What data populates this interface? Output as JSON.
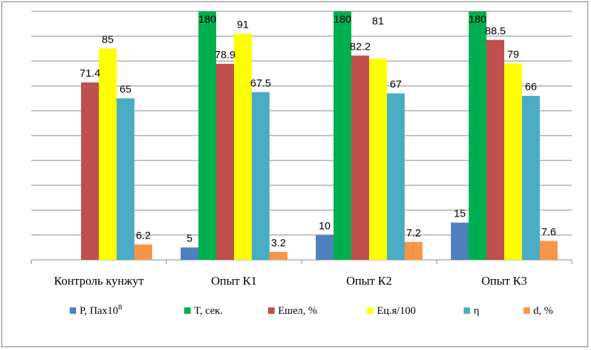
{
  "chart_data": {
    "type": "bar",
    "categories": [
      "Контроль кунжут",
      "Опыт К1",
      "Опыт К2",
      "Опыт К3"
    ],
    "series": [
      {
        "name": "P, Пах10",
        "sup": "8",
        "color": "#4f81bd",
        "values": [
          null,
          5,
          10,
          15
        ],
        "labels": [
          "",
          "5",
          "10",
          "15"
        ]
      },
      {
        "name": "T, сек.",
        "color": "#00b050",
        "values": [
          null,
          180,
          180,
          180
        ],
        "labels": [
          "",
          "180",
          "180",
          "180"
        ]
      },
      {
        "name": "Ешел, %",
        "color": "#c0504d",
        "values": [
          71.4,
          78.9,
          82.2,
          88.5
        ],
        "labels": [
          "71.4",
          "78.9",
          "82.2",
          "88.5"
        ]
      },
      {
        "name": "Ец.я/100",
        "color": "#ffff00",
        "values": [
          85,
          91,
          81,
          79
        ],
        "labels": [
          "85",
          "91",
          "81",
          "79"
        ]
      },
      {
        "name": "η",
        "color": "#4bacc6",
        "values": [
          65,
          67.5,
          67,
          66
        ],
        "labels": [
          "65",
          "67.5",
          "67",
          "66"
        ]
      },
      {
        "name": "d, %",
        "color": "#f79646",
        "values": [
          6.2,
          3.2,
          7.2,
          7.6
        ],
        "labels": [
          "6.2",
          "3.2",
          "7.2",
          "7.6"
        ]
      }
    ],
    "ylim": [
      0,
      180
    ],
    "grid": true,
    "legend": "bottom"
  }
}
